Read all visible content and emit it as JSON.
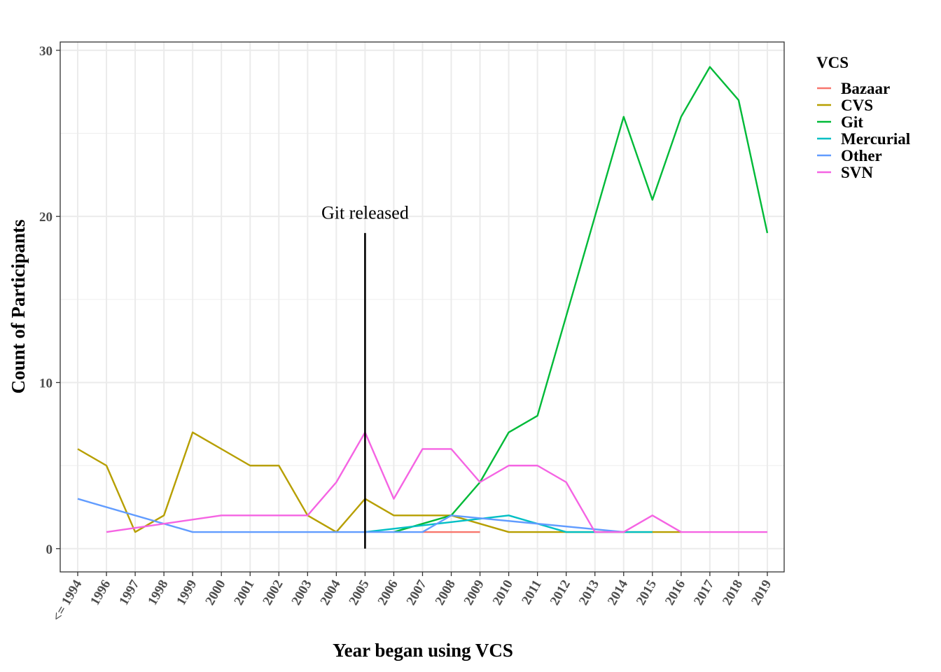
{
  "chart_data": {
    "type": "line",
    "xlabel": "Year began using VCS",
    "ylabel": "Count of Participants",
    "categories": [
      "<= 1994",
      "1996",
      "1997",
      "1998",
      "1999",
      "2000",
      "2001",
      "2002",
      "2003",
      "2004",
      "2005",
      "2006",
      "2007",
      "2008",
      "2009",
      "2010",
      "2011",
      "2012",
      "2013",
      "2014",
      "2015",
      "2016",
      "2017",
      "2018",
      "2019"
    ],
    "y_ticks": [
      "0",
      "10",
      "20",
      "30"
    ],
    "ylim": [
      -1.4,
      30.5
    ],
    "grid": true,
    "legend": {
      "title": "VCS",
      "placement": "right"
    },
    "series": [
      {
        "name": "Bazaar",
        "color": "#F8766D",
        "points": [
          [
            "2007",
            1
          ],
          [
            "2008",
            1
          ],
          [
            "2009",
            1
          ]
        ]
      },
      {
        "name": "CVS",
        "color": "#B79F00",
        "points": [
          [
            "<= 1994",
            6
          ],
          [
            "1996",
            5
          ],
          [
            "1997",
            1
          ],
          [
            "1998",
            2
          ],
          [
            "1999",
            7
          ],
          [
            "2000",
            6
          ],
          [
            "2001",
            5
          ],
          [
            "2002",
            5
          ],
          [
            "2003",
            2
          ],
          [
            "2004",
            1
          ],
          [
            "2005",
            3
          ],
          [
            "2006",
            2
          ],
          [
            "2007",
            2
          ],
          [
            "2008",
            2
          ],
          [
            "2010",
            1
          ],
          [
            "2011",
            1
          ],
          [
            "2012",
            1
          ],
          [
            "2013",
            1
          ],
          [
            "2014",
            1
          ],
          [
            "2015",
            1
          ],
          [
            "2016",
            1
          ]
        ]
      },
      {
        "name": "Git",
        "color": "#00BA38",
        "points": [
          [
            "2006",
            1
          ],
          [
            "2008",
            2
          ],
          [
            "2009",
            4
          ],
          [
            "2010",
            7
          ],
          [
            "2011",
            8
          ],
          [
            "2012",
            14
          ],
          [
            "2013",
            20
          ],
          [
            "2014",
            26
          ],
          [
            "2015",
            21
          ],
          [
            "2016",
            26
          ],
          [
            "2017",
            29
          ],
          [
            "2018",
            27
          ],
          [
            "2019",
            19
          ]
        ]
      },
      {
        "name": "Mercurial",
        "color": "#00BFC4",
        "points": [
          [
            "2005",
            1
          ],
          [
            "2010",
            2
          ],
          [
            "2012",
            1
          ],
          [
            "2013",
            1
          ],
          [
            "2014",
            1
          ],
          [
            "2015",
            1
          ]
        ]
      },
      {
        "name": "Other",
        "color": "#619CFF",
        "points": [
          [
            "<= 1994",
            3
          ],
          [
            "1999",
            1
          ],
          [
            "2000",
            1
          ],
          [
            "2001",
            1
          ],
          [
            "2002",
            1
          ],
          [
            "2003",
            1
          ],
          [
            "2004",
            1
          ],
          [
            "2005",
            1
          ],
          [
            "2006",
            1
          ],
          [
            "2007",
            1
          ],
          [
            "2008",
            2
          ],
          [
            "2014",
            1
          ]
        ]
      },
      {
        "name": "SVN",
        "color": "#F564E3",
        "points": [
          [
            "1996",
            1
          ],
          [
            "2000",
            2
          ],
          [
            "2001",
            2
          ],
          [
            "2002",
            2
          ],
          [
            "2003",
            2
          ],
          [
            "2004",
            4
          ],
          [
            "2005",
            7
          ],
          [
            "2006",
            3
          ],
          [
            "2007",
            6
          ],
          [
            "2008",
            6
          ],
          [
            "2009",
            4
          ],
          [
            "2010",
            5
          ],
          [
            "2011",
            5
          ],
          [
            "2012",
            4
          ],
          [
            "2013",
            1
          ],
          [
            "2014",
            1
          ],
          [
            "2015",
            2
          ],
          [
            "2016",
            1
          ],
          [
            "2017",
            1
          ],
          [
            "2018",
            1
          ],
          [
            "2019",
            1
          ]
        ]
      }
    ],
    "annotations": [
      {
        "text": "Git released",
        "x": "2005",
        "y": 20.2,
        "line": {
          "x": "2005",
          "y_from": 0,
          "y_to": 19
        }
      }
    ]
  }
}
